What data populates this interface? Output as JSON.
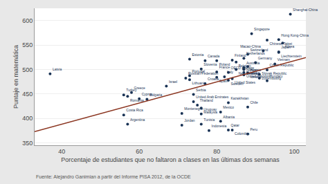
{
  "chart_data": {
    "type": "scatter",
    "xlabel": "Porcentaje de estudiantes que no faltaron a clases en las últimas dos semanas",
    "ylabel": "Puntaje en matemática",
    "footnote": "Fuente: Alejandro Ganimian a partir del Informe PISA 2012, de la OCDE",
    "xlim": [
      33,
      103
    ],
    "ylim": [
      345,
      625
    ],
    "xticks": [
      40,
      60,
      80,
      100
    ],
    "yticks": [
      350,
      400,
      450,
      500,
      550,
      600
    ],
    "grid": "y",
    "bg_color": "#e8e8e8",
    "plot_bg_color": "#ffffff",
    "series": [
      {
        "type": "scatter",
        "color": "#1a3355",
        "x": [
          99,
          89,
          93,
          96,
          97,
          92,
          96,
          96,
          88,
          87,
          73,
          84,
          77,
          80,
          85,
          90,
          95,
          88,
          87,
          87,
          76,
          87,
          85,
          93,
          80,
          83,
          87,
          88,
          37,
          91,
          87,
          73,
          82,
          80,
          72,
          91,
          84,
          73,
          83,
          93,
          77,
          67,
          58,
          74,
          56,
          57,
          60,
          62,
          74,
          83,
          75,
          76,
          88,
          81,
          71,
          76,
          56,
          71,
          76,
          57,
          81,
          83,
          78,
          84,
          88
        ],
        "values": [
          613,
          573,
          560,
          561,
          554,
          538,
          536,
          535,
          531,
          523,
          521,
          519,
          518,
          518,
          515,
          514,
          511,
          506,
          504,
          501,
          501,
          500,
          500,
          499,
          495,
          494,
          494,
          493,
          491,
          490,
          489,
          487,
          485,
          484,
          482,
          482,
          481,
          479,
          478,
          477,
          471,
          466,
          453,
          449,
          448,
          445,
          440,
          439,
          434,
          432,
          427,
          421,
          423,
          413,
          410,
          409,
          407,
          386,
          388,
          388,
          394,
          376,
          375,
          376,
          368
        ],
        "labels": [
          "Shanghai-China",
          "Singapore",
          "Chinese Taipei",
          "Hong Kong-China",
          "Korea",
          "Macao-China",
          "Japan",
          "Liechtenstein",
          "Switzerland",
          "Netherlands",
          "Estonia",
          "Finland",
          "Canada",
          "Poland",
          "Belgium",
          "Germany",
          "Vietnam",
          "Austria",
          "Australia",
          "Ireland",
          "Slovenia",
          "Denmark",
          "New Zealand",
          "Czech Republic",
          "France",
          "OECD average",
          "United Kingdom",
          "Iceland",
          "Latvia",
          "Luxembourg",
          "Norway",
          "Portugal",
          "Italy",
          "Spain",
          "Russian Federation",
          "Slovak Republic",
          "United States",
          "Lithuania",
          "Sweden",
          "Hungary",
          "Croatia",
          "Israel",
          "Greece",
          "Serbia",
          "Turkey",
          "Romania",
          "Cyprus",
          "Bulgaria",
          "United Arab Emirates",
          "Kazakhstan",
          "Thailand",
          "Malaysia",
          "Chile",
          "Mexico",
          "Montenegro",
          "Uruguay",
          "Costa Rica",
          "Jordan",
          "Tunisia",
          "Argentina",
          "Albania",
          "Qatar",
          "Indonesia",
          "Colombia",
          "Peru"
        ]
      },
      {
        "type": "line",
        "color": "#8b3520",
        "x": [
          33,
          103
        ],
        "values": [
          372.9,
          524.2
        ]
      }
    ]
  }
}
